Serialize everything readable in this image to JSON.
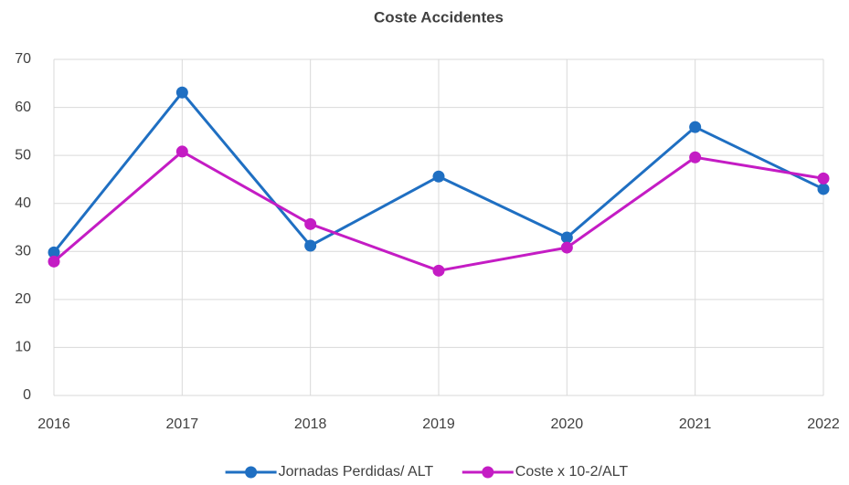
{
  "chart_data": {
    "type": "line",
    "title": "Coste Accidentes",
    "categories": [
      "2016",
      "2017",
      "2018",
      "2019",
      "2020",
      "2021",
      "2022"
    ],
    "series": [
      {
        "name": "Jornadas Perdidas/ ALT",
        "color": "#1f6fc2",
        "values": [
          29.8,
          63.1,
          31.2,
          45.6,
          32.9,
          55.9,
          43.0
        ]
      },
      {
        "name": "Coste x 10-2/ALT",
        "color": "#c41cc4",
        "values": [
          27.9,
          50.8,
          35.7,
          26.0,
          30.8,
          49.6,
          45.2
        ]
      }
    ],
    "ylim": [
      0,
      70
    ],
    "yticks": [
      0,
      10,
      20,
      30,
      40,
      50,
      60,
      70
    ],
    "grid": true,
    "legend": "bottom"
  }
}
